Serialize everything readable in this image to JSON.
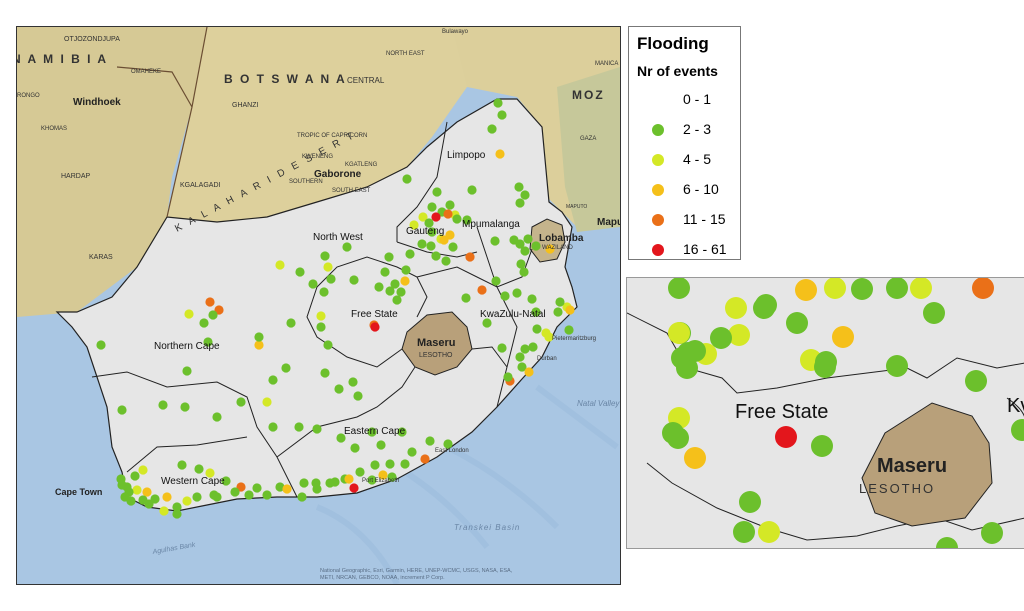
{
  "legend": {
    "title": "Flooding",
    "subtitle": "Nr of events",
    "classes": [
      {
        "label": "0 - 1",
        "color": "#ffffff"
      },
      {
        "label": "2 - 3",
        "color": "#6cc02c"
      },
      {
        "label": "4 - 5",
        "color": "#d4e826"
      },
      {
        "label": "6 - 10",
        "color": "#f5c01a"
      },
      {
        "label": "11 - 15",
        "color": "#ea7018"
      },
      {
        "label": "16 - 61",
        "color": "#e3161c"
      }
    ]
  },
  "colors": {
    "ocean": "#a9c6e3",
    "southafrica": "#e6e6e6",
    "neighbors": "#dccf9b",
    "lesotho": "#b8a07a",
    "border": "#222222"
  },
  "map_labels": {
    "namibia": "N A M I B I A",
    "otjozondjupa": "OTJOZONDJUPA",
    "omaheke": "OMAHEKE",
    "windhoek": "Windhoek",
    "khomas": "KHOMAS",
    "hardap": "HARDAP",
    "karas": "KARAS",
    "rongo": "RONGO",
    "botswana": "B O T S W A N A",
    "central": "CENTRAL",
    "ghanzi": "GHANZI",
    "north_east": "NORTH EAST",
    "kalahari_desert": "K A L A H A R I  D E S E R T",
    "tropic": "TROPIC OF CAPRICORN",
    "kweneng": "KWENENG",
    "kgatleng": "KGATLENG",
    "gaborone": "Gaborone",
    "southern": "SOUTHERN",
    "south_east": "SOUTH EAST",
    "kgalagadi": "KGALAGADI",
    "bulawayo": "Bulawayo",
    "moz": "MOZ",
    "manica": "MANICA",
    "gaza": "GAZA",
    "maputo": "Maput",
    "maputo_small": "MAPUTO",
    "lobamba": "Lobamba",
    "swaziland": "WAZILAND",
    "limpopo": "Limpopo",
    "north_west": "North West",
    "gauteng": "Gauteng",
    "mpumalanga": "Mpumalanga",
    "free_state": "Free State",
    "kwazulu_natal": "KwaZulu-Natal",
    "northern_cape": "Northern Cape",
    "maseru": "Maseru",
    "lesotho": "LESOTHO",
    "eastern_cape": "Eastern Cape",
    "western_cape": "Western Cape",
    "cape_town": "Cape Town",
    "east_london": "East London",
    "port_elizabeth": "Port Elizabeth",
    "pmb": "Pietermaritzburg",
    "durban": "Durban",
    "natal_valley": "Natal Valley",
    "transkei_basin": "Transkei Basin",
    "agulhas_bank": "Agulhas Bank",
    "attribution_1": "National Geographic, Esri, Garmin, HERE, UNEP-WCMC, USGS, NASA, ESA,",
    "attribution_2": "METI, NRCAN, GEBCO, NOAA, increment P Corp."
  },
  "inset_labels": {
    "free_state": "Free State",
    "maseru": "Maseru",
    "lesotho": "LESOTHO",
    "kwazulu_partial": "Kv"
  }
}
